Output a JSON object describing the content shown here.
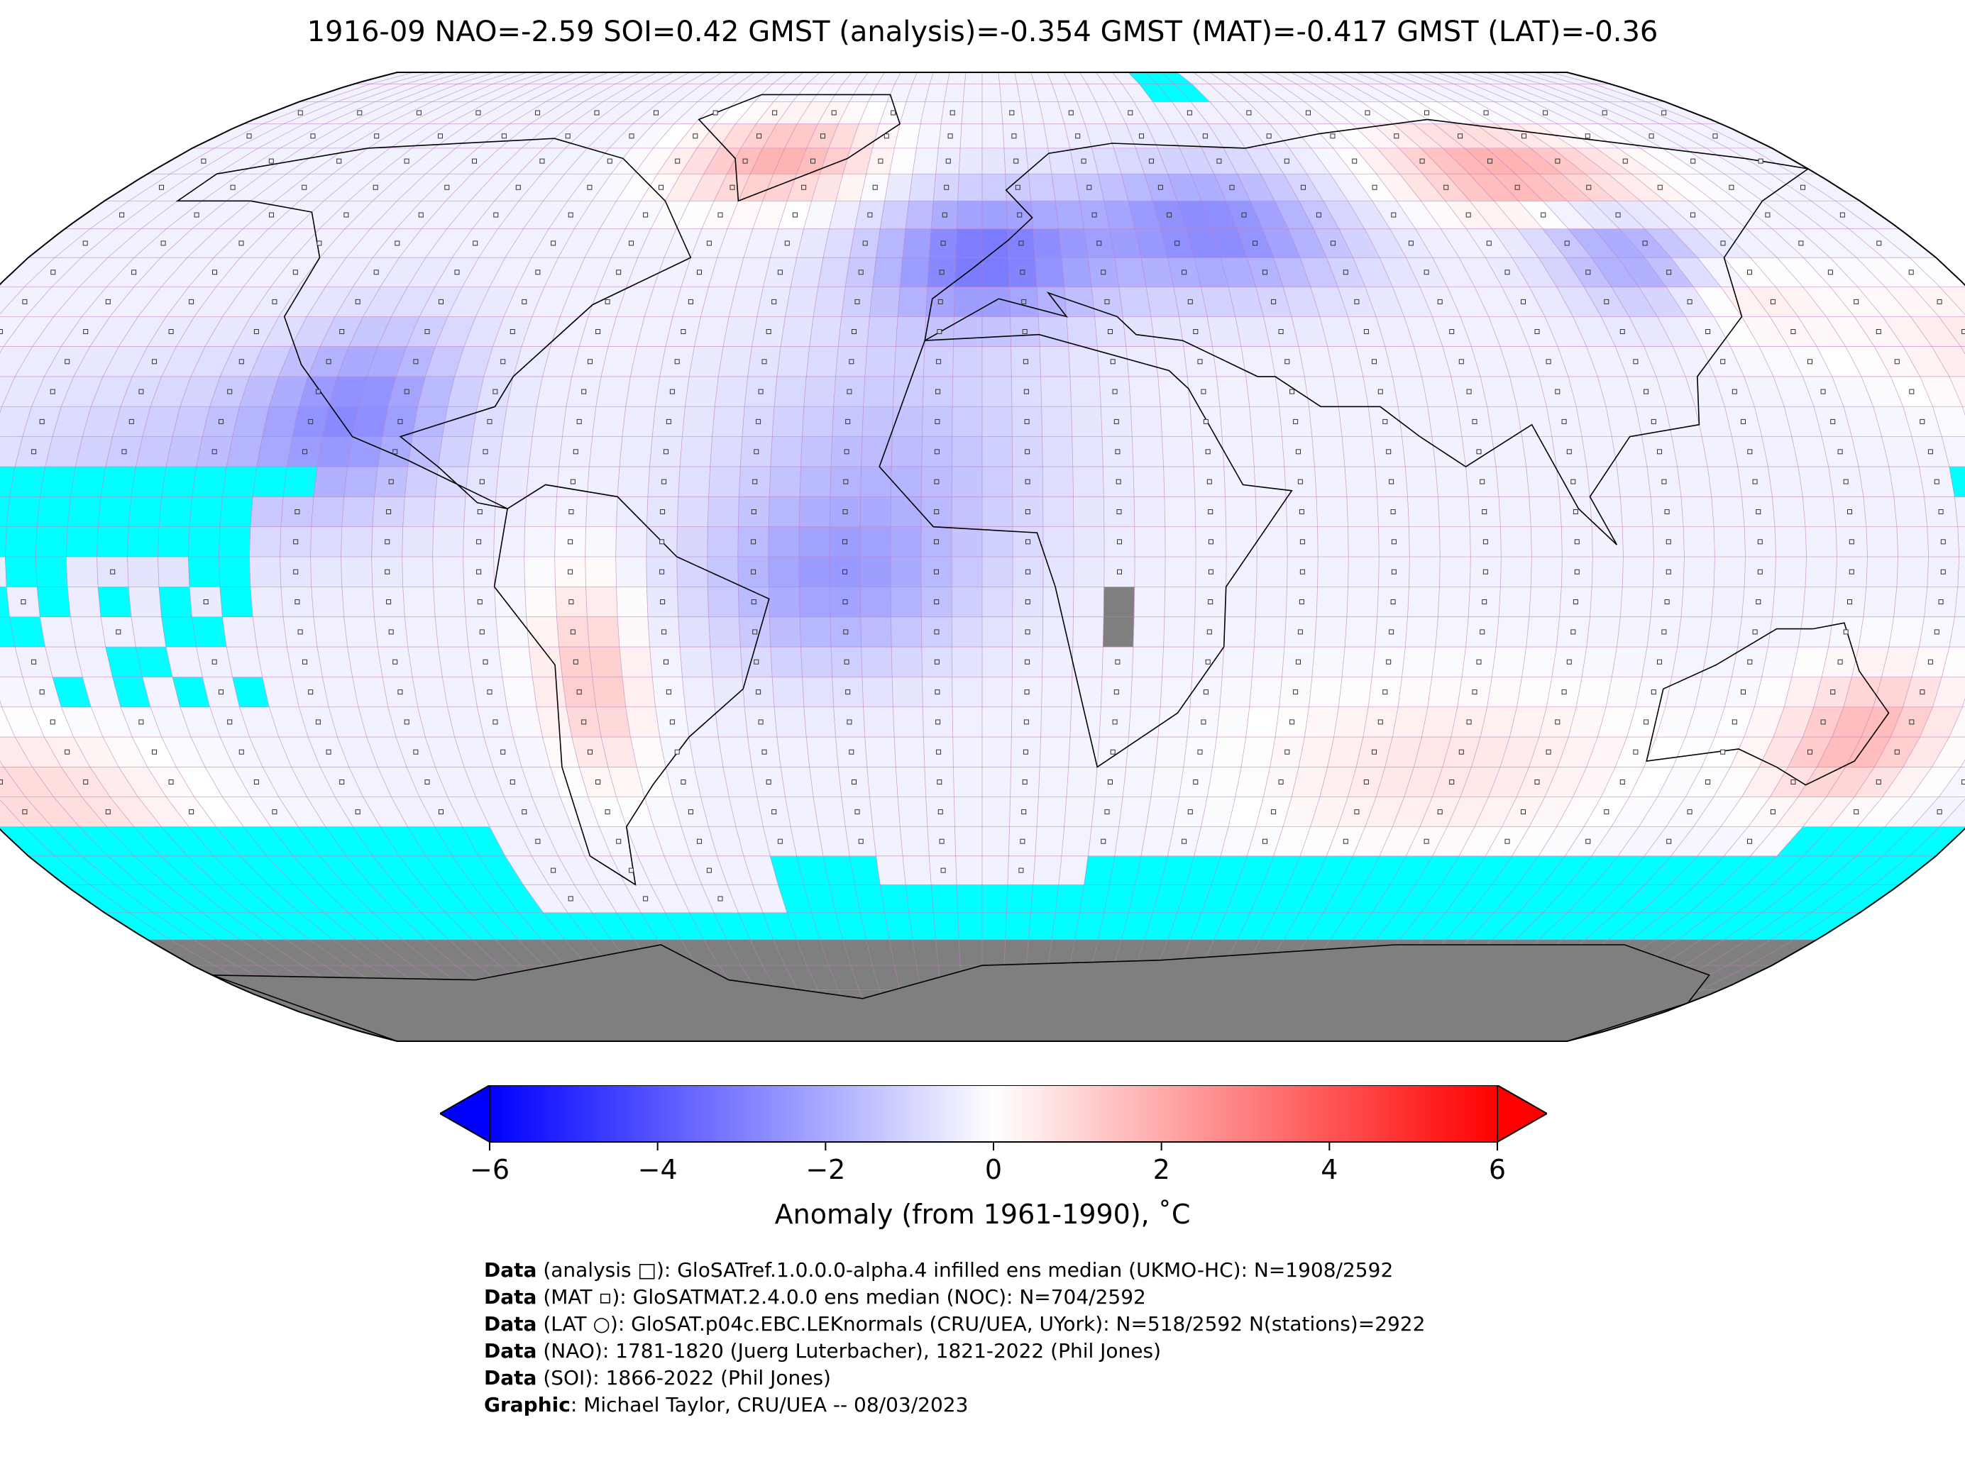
{
  "title": "1916-09 NAO=-2.59 SOI=0.42 GMST (analysis)=-0.354 GMST (MAT)=-0.417 GMST (LAT)=-0.36",
  "colorbar": {
    "label": "Anomaly (from 1961-1990), ˚C",
    "ticks": [
      "−6",
      "−4",
      "−2",
      "0",
      "2",
      "4",
      "6"
    ],
    "tick_values": [
      -6,
      -4,
      -2,
      0,
      2,
      4,
      6
    ],
    "range": [
      -6,
      6
    ],
    "colors": {
      "min": "#0000ff",
      "mid": "#ffffff",
      "max": "#ff0000"
    }
  },
  "map": {
    "projection": "Robinson",
    "grid": "5x5 degree",
    "missing_color": "#00ffff",
    "land_mask_color": "#7f7f7f",
    "coast_color": "#000000",
    "grid_line_color": "#c080c0"
  },
  "credits": [
    {
      "key": "Data",
      "text": " (analysis □): GloSATref.1.0.0.0-alpha.4 infilled ens median (UKMO-HC): N=1908/2592"
    },
    {
      "key": "Data",
      "text": " (MAT ▫): GloSATMAT.2.4.0.0 ens median (NOC): N=704/2592"
    },
    {
      "key": "Data",
      "text": " (LAT ○): GloSAT.p04c.EBC.LEKnormals (CRU/UEA, UYork): N=518/2592 N(stations)=2922"
    },
    {
      "key": "Data",
      "text": " (NAO): 1781-1820 (Juerg Luterbacher), 1821-2022 (Phil Jones)"
    },
    {
      "key": "Data",
      "text": " (SOI): 1866-2022 (Phil Jones)"
    },
    {
      "key": "Graphic",
      "text": ": Michael Taylor, CRU/UEA -- 08/03/2023"
    }
  ]
}
